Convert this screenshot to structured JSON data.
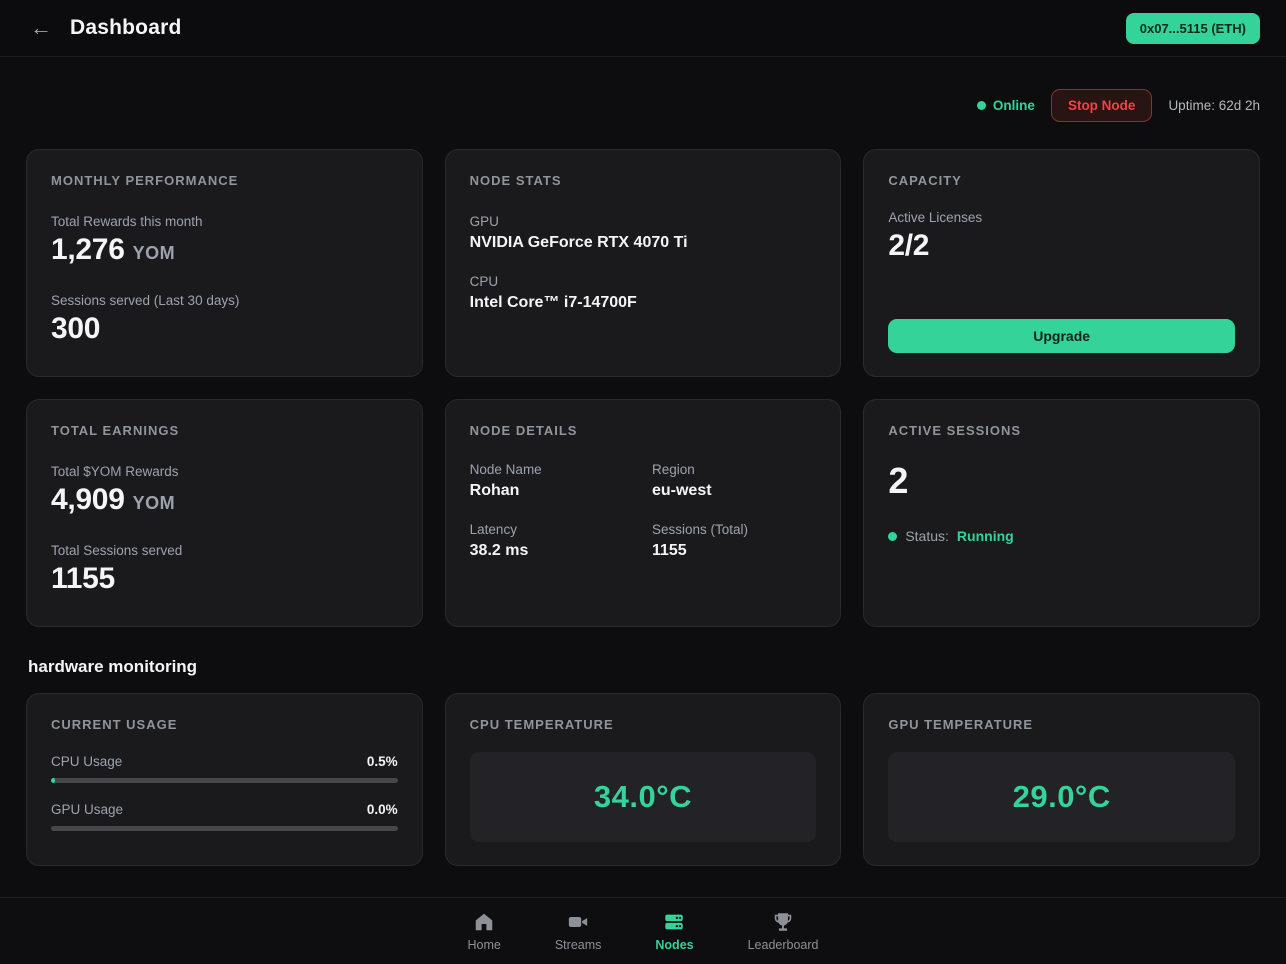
{
  "header": {
    "back_icon": "←",
    "title": "Dashboard",
    "wallet": "0x07...5115 (ETH)"
  },
  "status_bar": {
    "online": "Online",
    "stop_node": "Stop Node",
    "uptime": "Uptime: 62d 2h"
  },
  "cards": {
    "monthly_performance": {
      "title": "MONTHLY PERFORMANCE",
      "rewards_label": "Total Rewards this month",
      "rewards_value": "1,276",
      "rewards_unit": "YOM",
      "sessions_label": "Sessions served (Last 30 days)",
      "sessions_value": "300"
    },
    "node_stats": {
      "title": "NODE STATS",
      "gpu_label": "GPU",
      "gpu_value": "NVIDIA GeForce RTX 4070 Ti",
      "cpu_label": "CPU",
      "cpu_value": "Intel Core™ i7-14700F"
    },
    "capacity": {
      "title": "CAPACITY",
      "licenses_label": "Active Licenses",
      "licenses_value": "2/2",
      "upgrade_label": "Upgrade"
    },
    "total_earnings": {
      "title": "TOTAL EARNINGS",
      "rewards_label": "Total $YOM Rewards",
      "rewards_value": "4,909",
      "rewards_unit": "YOM",
      "sessions_label": "Total Sessions served",
      "sessions_value": "1155"
    },
    "node_details": {
      "title": "NODE DETAILS",
      "fields": [
        {
          "label": "Node Name",
          "value": "Rohan"
        },
        {
          "label": "Region",
          "value": "eu-west"
        },
        {
          "label": "Latency",
          "value": "38.2 ms"
        },
        {
          "label": "Sessions (Total)",
          "value": "1155"
        }
      ]
    },
    "active_sessions": {
      "title": "ACTIVE SESSIONS",
      "count": "2",
      "status_label": "Status:",
      "status_value": "Running"
    }
  },
  "hardware": {
    "heading": "hardware monitoring",
    "current_usage": {
      "title": "CURRENT USAGE",
      "rows": [
        {
          "label": "CPU Usage",
          "value": "0.5%",
          "percent": 0.5
        },
        {
          "label": "GPU Usage",
          "value": "0.0%",
          "percent": 0
        }
      ]
    },
    "cpu_temperature": {
      "title": "CPU TEMPERATURE",
      "value": "34.0°C"
    },
    "gpu_temperature": {
      "title": "GPU TEMPERATURE",
      "value": "29.0°C"
    }
  },
  "nav": {
    "active": "Nodes",
    "items": [
      {
        "label": "Home",
        "icon": "home-icon"
      },
      {
        "label": "Streams",
        "icon": "video-camera-icon"
      },
      {
        "label": "Nodes",
        "icon": "server-stack-icon"
      },
      {
        "label": "Leaderboard",
        "icon": "trophy-icon"
      }
    ]
  },
  "colors": {
    "accent_green": "#34d399",
    "danger_red": "#ef4444",
    "page_bg": "#0d0d0f",
    "card_bg": "#1a1a1c"
  }
}
